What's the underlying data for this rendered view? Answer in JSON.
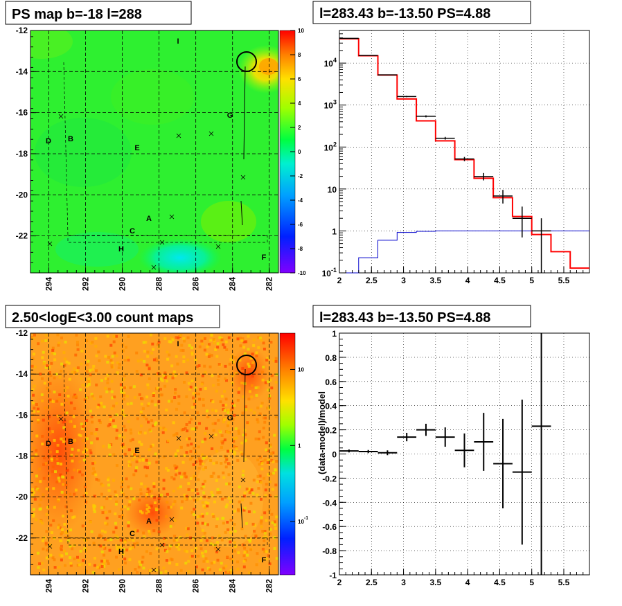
{
  "panels": {
    "map_top": {
      "title": "PS map b=-18 l=288",
      "y_ticks": [
        "-12",
        "-14",
        "-16",
        "-18",
        "-20",
        "-22"
      ],
      "x_ticks": [
        "294",
        "292",
        "290",
        "288",
        "286",
        "284",
        "282"
      ],
      "colorbar_ticks": [
        "10",
        "8",
        "6",
        "4",
        "2",
        "0",
        "-2",
        "-4",
        "-6",
        "-8",
        "-10"
      ]
    },
    "map_bottom": {
      "title": "2.50<logE<3.00 count maps",
      "y_ticks": [
        "-12",
        "-14",
        "-16",
        "-18",
        "-20",
        "-22"
      ],
      "x_ticks": [
        "294",
        "292",
        "290",
        "288",
        "286",
        "284",
        "282"
      ],
      "colorbar_ticks": [
        {
          "base": "10",
          "exp": ""
        },
        {
          "base": "1",
          "exp": ""
        },
        {
          "base": "10",
          "exp": "-1"
        }
      ]
    },
    "spectrum": {
      "title": "l=283.43 b=-13.50 PS=4.88",
      "x_ticks": [
        "2",
        "2.5",
        "3",
        "3.5",
        "4",
        "4.5",
        "5",
        "5.5"
      ],
      "y_ticks": [
        {
          "base": "10",
          "exp": "4"
        },
        {
          "base": "10",
          "exp": "3"
        },
        {
          "base": "10",
          "exp": "2"
        },
        {
          "base": "10",
          "exp": ""
        },
        {
          "base": "1",
          "exp": ""
        },
        {
          "base": "10",
          "exp": "-1"
        }
      ]
    },
    "residual": {
      "title": "l=283.43 b=-13.50 PS=4.88",
      "ylabel": "(data-model)/model",
      "x_ticks": [
        "2",
        "2.5",
        "3",
        "3.5",
        "4",
        "4.5",
        "5",
        "5.5"
      ],
      "y_ticks": [
        "1",
        "0.8",
        "0.6",
        "0.4",
        "0.2",
        "0",
        "-0.2",
        "-0.4",
        "-0.6",
        "-0.8",
        "-1"
      ]
    }
  },
  "map_labels": [
    "I",
    "D",
    "B",
    "E",
    "G",
    "A",
    "C",
    "H",
    "F"
  ],
  "colors": {
    "model": "#ff0000",
    "background": "#0000cc",
    "data": "#000000"
  },
  "chart_data": [
    {
      "type": "heatmap",
      "title": "PS map b=-18 l=288",
      "xlim": [
        295,
        281.5
      ],
      "ylim": [
        -23.8,
        -12
      ],
      "zlim": [
        -10,
        10
      ],
      "palette": "rainbow",
      "features": "mostly green (0-2) field, hot spot (≈8) near l=282.8 b=-13.8, cyan region (≈-2) near l=287 b=-23",
      "source_circle": {
        "l": 283.2,
        "b": -13.5
      }
    },
    {
      "type": "heatmap",
      "title": "2.50<logE<3.00 count maps",
      "xlim": [
        295,
        281.5
      ],
      "ylim": [
        -23.8,
        -12
      ],
      "z_scale": "log",
      "zlim": [
        0.02,
        30
      ],
      "palette": "rainbow",
      "source_circle": {
        "l": 283.2,
        "b": -13.5
      }
    },
    {
      "type": "line",
      "title": "l=283.43 b=-13.50 PS=4.88",
      "y_scale": "log",
      "xlim": [
        2.0,
        5.9
      ],
      "ylim": [
        0.1,
        60000
      ],
      "series": [
        {
          "style": "step",
          "edges": [
            2.0,
            2.3,
            2.6,
            2.9,
            3.2,
            3.5,
            3.8,
            4.1,
            4.4,
            4.7,
            5.0,
            5.3,
            5.6,
            5.9
          ],
          "values": [
            38000,
            15000,
            5200,
            1400,
            420,
            140,
            50,
            18,
            6.2,
            2.2,
            0.82,
            0.32,
            0.13
          ]
        },
        {
          "style": "step",
          "edges": [
            2.0,
            2.3,
            2.6,
            2.9,
            3.2,
            3.5,
            3.8,
            4.1,
            4.4,
            4.7,
            5.0,
            5.3,
            5.6,
            5.9
          ],
          "values": [
            0.1,
            0.23,
            0.6,
            0.92,
            0.98,
            1.0,
            1.0,
            1.0,
            1.0,
            1.0,
            1.0,
            1.0,
            1.0
          ]
        },
        {
          "style": "errorbar",
          "x": [
            2.15,
            2.45,
            2.75,
            3.05,
            3.35,
            3.65,
            3.95,
            4.25,
            4.55,
            4.85,
            5.15
          ],
          "y": [
            39000,
            15300,
            5250,
            1600,
            540,
            162,
            52,
            19.8,
            6.8,
            2.0,
            1.0
          ],
          "ylo": [
            38500,
            15100,
            5150,
            1540,
            510,
            150,
            46,
            16,
            4.5,
            0.7,
            0.05
          ],
          "yhi": [
            39500,
            15500,
            5350,
            1660,
            570,
            174,
            58,
            24,
            9.5,
            3.8,
            2.0
          ]
        }
      ]
    },
    {
      "type": "scatter",
      "title": "l=283.43 b=-13.50 PS=4.88",
      "ylabel": "(data-model)/model",
      "xlim": [
        2.0,
        5.9
      ],
      "ylim": [
        -1,
        1
      ],
      "x": [
        2.15,
        2.45,
        2.75,
        3.05,
        3.35,
        3.65,
        3.95,
        4.25,
        4.55,
        4.85,
        5.15
      ],
      "y": [
        0.025,
        0.02,
        0.01,
        0.14,
        0.2,
        0.14,
        0.03,
        0.1,
        -0.08,
        -0.15,
        0.23
      ],
      "yerr": [
        0.012,
        0.013,
        0.02,
        0.035,
        0.05,
        0.08,
        0.14,
        0.24,
        0.37,
        0.6,
        1.25
      ]
    }
  ]
}
